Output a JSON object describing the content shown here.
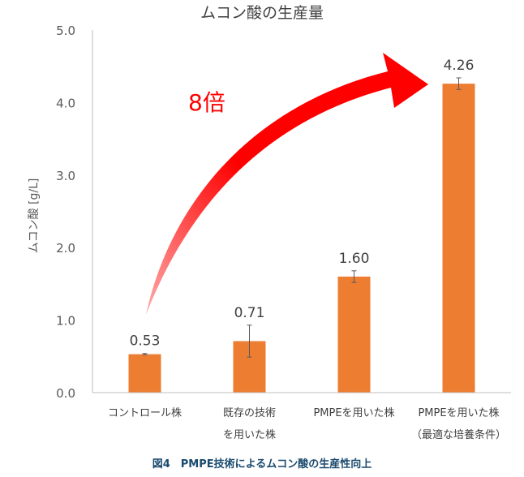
{
  "chart_data": {
    "type": "bar",
    "title": "ムコン酸の生産量",
    "ylabel": "ムコン酸 [g/L]",
    "xlabel": "",
    "ylim": [
      0,
      5
    ],
    "yticks": [
      "0.0",
      "1.0",
      "2.0",
      "3.0",
      "4.0",
      "5.0"
    ],
    "grid": false,
    "categories": [
      [
        "コントロール株"
      ],
      [
        "既存の技術",
        "を用いた株"
      ],
      [
        "PMPEを用いた株"
      ],
      [
        "PMPEを用いた株",
        "（最適な培養条件）"
      ]
    ],
    "values": [
      0.53,
      0.71,
      1.6,
      4.26
    ],
    "value_labels": [
      "0.53",
      "0.71",
      "1.60",
      "4.26"
    ],
    "errors": [
      0.01,
      0.22,
      0.08,
      0.08
    ],
    "bar_color": "#ED7D31",
    "annotation": {
      "text": "8倍",
      "color": "#FF0000"
    }
  },
  "caption": "図4　PMPE技術によるムコン酸の生産性向上"
}
